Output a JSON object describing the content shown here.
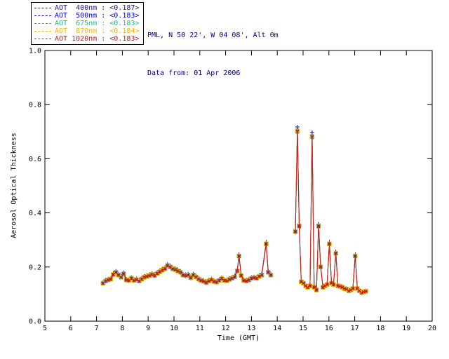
{
  "window": {
    "background": "#FFFFFF"
  },
  "header": {
    "site_line": "PML, N 50 22', W 04 08', Alt 0m",
    "date_line": "Data from: 01 Apr 2006",
    "text_color": "#00008B"
  },
  "chart_data": {
    "type": "line",
    "title": "",
    "xlabel": "Time (GMT)",
    "ylabel": "Aerosol Optical Thickness",
    "xlim": [
      5,
      20
    ],
    "ylim": [
      0.0,
      1.0
    ],
    "xticks": [
      5,
      6,
      7,
      8,
      9,
      10,
      11,
      12,
      13,
      14,
      15,
      16,
      17,
      18,
      19,
      20
    ],
    "yticks": [
      0.0,
      0.2,
      0.4,
      0.6,
      0.8,
      1.0
    ],
    "grid": false,
    "legend_position": "top-left",
    "gap_threshold": 0.5,
    "x": [
      7.25,
      7.35,
      7.45,
      7.55,
      7.65,
      7.75,
      7.85,
      7.95,
      8.05,
      8.15,
      8.25,
      8.35,
      8.45,
      8.55,
      8.65,
      8.75,
      8.85,
      8.95,
      9.05,
      9.15,
      9.25,
      9.35,
      9.45,
      9.55,
      9.65,
      9.75,
      9.85,
      9.95,
      10.05,
      10.15,
      10.25,
      10.35,
      10.45,
      10.55,
      10.65,
      10.75,
      10.85,
      10.95,
      11.05,
      11.15,
      11.25,
      11.35,
      11.45,
      11.55,
      11.65,
      11.75,
      11.85,
      11.95,
      12.05,
      12.15,
      12.25,
      12.35,
      12.45,
      12.52,
      12.6,
      12.7,
      12.8,
      12.9,
      13.0,
      13.1,
      13.2,
      13.3,
      13.4,
      13.57,
      13.65,
      13.75,
      14.7,
      14.78,
      14.85,
      14.93,
      15.02,
      15.1,
      15.18,
      15.27,
      15.35,
      15.43,
      15.52,
      15.6,
      15.68,
      15.77,
      15.85,
      15.93,
      16.02,
      16.1,
      16.18,
      16.27,
      16.35,
      16.43,
      16.52,
      16.6,
      16.68,
      16.77,
      16.85,
      16.93,
      17.02,
      17.1,
      17.18,
      17.27,
      17.35,
      17.43
    ],
    "y_base": [
      0.14,
      0.148,
      0.152,
      0.155,
      0.172,
      0.18,
      0.17,
      0.162,
      0.175,
      0.152,
      0.15,
      0.158,
      0.15,
      0.153,
      0.148,
      0.155,
      0.162,
      0.165,
      0.168,
      0.172,
      0.168,
      0.176,
      0.182,
      0.188,
      0.193,
      0.205,
      0.2,
      0.193,
      0.19,
      0.185,
      0.18,
      0.17,
      0.168,
      0.17,
      0.16,
      0.17,
      0.163,
      0.155,
      0.15,
      0.147,
      0.142,
      0.148,
      0.152,
      0.146,
      0.144,
      0.15,
      0.157,
      0.15,
      0.149,
      0.154,
      0.158,
      0.163,
      0.185,
      0.24,
      0.168,
      0.15,
      0.148,
      0.151,
      0.158,
      0.16,
      0.158,
      0.165,
      0.17,
      0.285,
      0.18,
      0.17,
      0.33,
      0.7,
      0.35,
      0.145,
      0.14,
      0.13,
      0.125,
      0.13,
      0.68,
      0.125,
      0.115,
      0.35,
      0.2,
      0.125,
      0.13,
      0.135,
      0.285,
      0.14,
      0.135,
      0.25,
      0.13,
      0.128,
      0.125,
      0.12,
      0.118,
      0.112,
      0.115,
      0.12,
      0.24,
      0.12,
      0.112,
      0.105,
      0.108,
      0.11
    ],
    "series": [
      {
        "id": "aot-400nm",
        "name": "AOT 400nm",
        "legend_label": "AOT  400nm : <0.187>",
        "mean": 0.187,
        "color": "#16169B",
        "marker": "plus",
        "scale": 1.025
      },
      {
        "id": "aot-500nm",
        "name": "AOT 500nm",
        "legend_label": "AOT  500nm : <0.183>",
        "mean": 0.183,
        "color": "#0000EE",
        "marker": "asterisk",
        "scale": 1.008
      },
      {
        "id": "aot-675nm",
        "name": "AOT 675nm",
        "legend_label": "AOT  675nm : <0.183>",
        "mean": 0.183,
        "color": "#00CC88",
        "marker": "diamond",
        "scale": 0.998
      },
      {
        "id": "aot-870nm",
        "name": "AOT 870nm",
        "legend_label": "AOT  870nm : <0.184>",
        "mean": 0.184,
        "color": "#EDB800",
        "marker": "square",
        "scale": 1.003
      },
      {
        "id": "aot-1020nm",
        "name": "AOT 1020nm",
        "legend_label": "AOT 1020nm : <0.183>",
        "mean": 0.183,
        "color": "#D01616",
        "marker": "x",
        "scale": 1.0
      }
    ]
  }
}
